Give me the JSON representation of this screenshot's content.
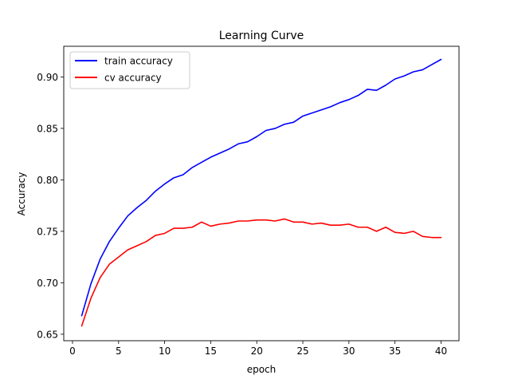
{
  "chart_data": {
    "type": "line",
    "title": "Learning Curve",
    "xlabel": "epoch",
    "ylabel": "Accuracy",
    "xlim": [
      -0.95,
      41.95
    ],
    "ylim": [
      0.6437,
      0.9298
    ],
    "xticks": [
      0,
      5,
      10,
      15,
      20,
      25,
      30,
      35,
      40
    ],
    "xtick_labels": [
      "0",
      "5",
      "10",
      "15",
      "20",
      "25",
      "30",
      "35",
      "40"
    ],
    "yticks": [
      0.65,
      0.7,
      0.75,
      0.8,
      0.85,
      0.9
    ],
    "ytick_labels": [
      "0.65",
      "0.70",
      "0.75",
      "0.80",
      "0.85",
      "0.90"
    ],
    "grid": false,
    "legend_position": "upper-left",
    "x": [
      1,
      2,
      3,
      4,
      5,
      6,
      7,
      8,
      9,
      10,
      11,
      12,
      13,
      14,
      15,
      16,
      17,
      18,
      19,
      20,
      21,
      22,
      23,
      24,
      25,
      26,
      27,
      28,
      29,
      30,
      31,
      32,
      33,
      34,
      35,
      36,
      37,
      38,
      39,
      40
    ],
    "series": [
      {
        "name": "train accuracy",
        "color": "#0000ff",
        "values": [
          0.668,
          0.699,
          0.723,
          0.74,
          0.753,
          0.765,
          0.773,
          0.78,
          0.789,
          0.796,
          0.802,
          0.805,
          0.812,
          0.817,
          0.822,
          0.826,
          0.83,
          0.835,
          0.837,
          0.842,
          0.848,
          0.85,
          0.854,
          0.856,
          0.862,
          0.865,
          0.868,
          0.871,
          0.875,
          0.878,
          0.882,
          0.888,
          0.887,
          0.892,
          0.898,
          0.901,
          0.905,
          0.907,
          0.912,
          0.917
        ]
      },
      {
        "name": "cv accuracy",
        "color": "#ff0000",
        "values": [
          0.658,
          0.685,
          0.705,
          0.718,
          0.725,
          0.732,
          0.736,
          0.74,
          0.746,
          0.748,
          0.753,
          0.753,
          0.754,
          0.759,
          0.755,
          0.757,
          0.758,
          0.76,
          0.76,
          0.761,
          0.761,
          0.76,
          0.762,
          0.759,
          0.759,
          0.757,
          0.758,
          0.756,
          0.756,
          0.757,
          0.754,
          0.754,
          0.75,
          0.754,
          0.749,
          0.748,
          0.75,
          0.745,
          0.744,
          0.744
        ]
      }
    ]
  }
}
